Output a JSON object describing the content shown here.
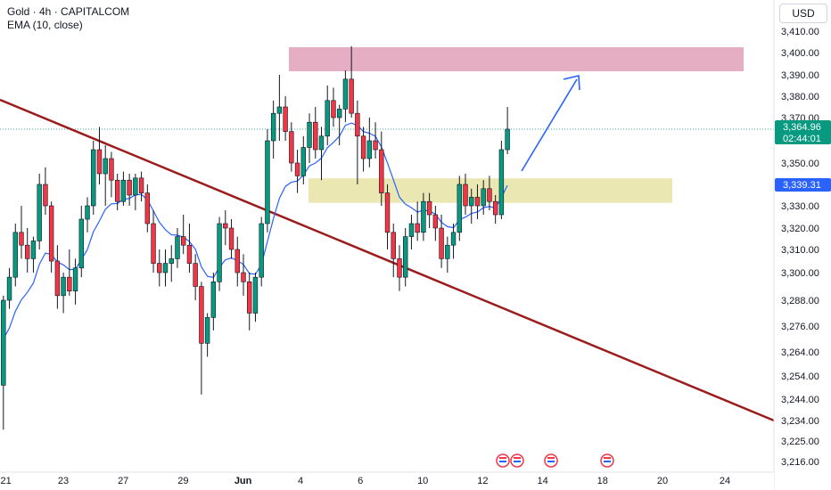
{
  "legend": {
    "symbol_line": "Gold · 4h · CAPITALCOM",
    "indicator_line": "EMA (10, close)"
  },
  "currency_button": "USD",
  "price_labels": {
    "last_price": "3,364.96",
    "countdown": "02:44:01",
    "ema_value": "3,339.31"
  },
  "colors": {
    "up": "#089981",
    "down": "#f23645",
    "ema": "#2962ff",
    "trendline": "#9b1c1c",
    "resistance_zone": "#e2a0b8",
    "support_zone": "#e8e3a6",
    "arrow": "#2962ff",
    "last_price_bg": "#089981",
    "ema_label_bg": "#2962ff"
  },
  "chart_data": {
    "type": "candlestick",
    "y_axis": {
      "position": "right",
      "ticks": [
        3410,
        3400,
        3390,
        3380,
        3370,
        3360,
        3350,
        3340,
        3330,
        3320,
        3310,
        3300,
        3288,
        3276,
        3264,
        3254,
        3244,
        3234,
        3225,
        3216
      ],
      "tick_labels": [
        "3,410.00",
        "3,400.00",
        "3,390.00",
        "3,380.00",
        "3,370.00",
        "",
        "3,350.00",
        "",
        "3,330.00",
        "3,320.00",
        "3,310.00",
        "3,300.00",
        "3,288.00",
        "3,276.00",
        "3,264.00",
        "3,254.00",
        "3,244.00",
        "3,234.00",
        "3,225.00",
        "3,216.00"
      ]
    },
    "x_axis": {
      "tick_labels": [
        "21",
        "23",
        "27",
        "29",
        "Jun",
        "4",
        "6",
        "10",
        "12",
        "14",
        "18",
        "20",
        "24"
      ],
      "tick_bar_index": [
        1,
        24,
        48,
        72,
        96,
        119,
        143,
        168,
        192,
        216,
        240,
        264,
        289
      ]
    },
    "candles": [
      [
        3250,
        3290,
        3230,
        3288
      ],
      [
        3288,
        3302,
        3284,
        3298
      ],
      [
        3298,
        3322,
        3294,
        3318
      ],
      [
        3318,
        3330,
        3306,
        3312
      ],
      [
        3312,
        3320,
        3300,
        3306
      ],
      [
        3306,
        3316,
        3300,
        3314
      ],
      [
        3314,
        3345,
        3310,
        3340
      ],
      [
        3340,
        3348,
        3326,
        3330
      ],
      [
        3330,
        3332,
        3300,
        3305
      ],
      [
        3305,
        3312,
        3284,
        3290
      ],
      [
        3290,
        3300,
        3282,
        3298
      ],
      [
        3298,
        3310,
        3290,
        3292
      ],
      [
        3292,
        3306,
        3286,
        3302
      ],
      [
        3302,
        3330,
        3298,
        3324
      ],
      [
        3324,
        3334,
        3318,
        3330
      ],
      [
        3330,
        3360,
        3326,
        3356
      ],
      [
        3356,
        3366,
        3340,
        3345
      ],
      [
        3345,
        3358,
        3330,
        3352
      ],
      [
        3352,
        3355,
        3334,
        3342
      ],
      [
        3342,
        3345,
        3328,
        3332
      ],
      [
        3332,
        3346,
        3330,
        3342
      ],
      [
        3342,
        3345,
        3330,
        3335
      ],
      [
        3335,
        3345,
        3328,
        3343
      ],
      [
        3343,
        3346,
        3332,
        3336
      ],
      [
        3336,
        3340,
        3318,
        3322
      ],
      [
        3322,
        3328,
        3300,
        3304
      ],
      [
        3304,
        3310,
        3294,
        3300
      ],
      [
        3300,
        3310,
        3294,
        3304
      ],
      [
        3304,
        3312,
        3296,
        3306
      ],
      [
        3306,
        3320,
        3302,
        3316
      ],
      [
        3316,
        3326,
        3308,
        3312
      ],
      [
        3312,
        3322,
        3300,
        3304
      ],
      [
        3304,
        3308,
        3288,
        3294
      ],
      [
        3294,
        3296,
        3246,
        3268
      ],
      [
        3268,
        3282,
        3262,
        3280
      ],
      [
        3280,
        3300,
        3274,
        3296
      ],
      [
        3296,
        3325,
        3292,
        3322
      ],
      [
        3322,
        3328,
        3312,
        3320
      ],
      [
        3320,
        3324,
        3306,
        3310
      ],
      [
        3310,
        3316,
        3294,
        3300
      ],
      [
        3300,
        3308,
        3290,
        3296
      ],
      [
        3296,
        3300,
        3274,
        3282
      ],
      [
        3282,
        3300,
        3278,
        3298
      ],
      [
        3298,
        3325,
        3294,
        3322
      ],
      [
        3322,
        3365,
        3318,
        3360
      ],
      [
        3360,
        3378,
        3352,
        3372
      ],
      [
        3372,
        3390,
        3360,
        3375
      ],
      [
        3375,
        3380,
        3360,
        3364
      ],
      [
        3364,
        3368,
        3346,
        3350
      ],
      [
        3350,
        3356,
        3336,
        3344
      ],
      [
        3344,
        3362,
        3340,
        3357
      ],
      [
        3357,
        3372,
        3350,
        3368
      ],
      [
        3368,
        3375,
        3352,
        3356
      ],
      [
        3356,
        3366,
        3342,
        3362
      ],
      [
        3362,
        3385,
        3358,
        3378
      ],
      [
        3378,
        3384,
        3366,
        3370
      ],
      [
        3370,
        3376,
        3358,
        3374
      ],
      [
        3374,
        3392,
        3368,
        3388
      ],
      [
        3388,
        3403,
        3370,
        3372
      ],
      [
        3372,
        3378,
        3340,
        3362
      ],
      [
        3362,
        3366,
        3346,
        3352
      ],
      [
        3352,
        3370,
        3348,
        3360
      ],
      [
        3360,
        3368,
        3352,
        3356
      ],
      [
        3356,
        3364,
        3330,
        3336
      ],
      [
        3336,
        3340,
        3310,
        3318
      ],
      [
        3318,
        3322,
        3298,
        3306
      ],
      [
        3306,
        3312,
        3292,
        3298
      ],
      [
        3298,
        3320,
        3294,
        3316
      ],
      [
        3316,
        3326,
        3310,
        3322
      ],
      [
        3322,
        3332,
        3314,
        3318
      ],
      [
        3318,
        3336,
        3314,
        3332
      ],
      [
        3332,
        3336,
        3320,
        3326
      ],
      [
        3326,
        3330,
        3314,
        3320
      ],
      [
        3320,
        3326,
        3302,
        3306
      ],
      [
        3306,
        3316,
        3300,
        3312
      ],
      [
        3312,
        3322,
        3306,
        3318
      ],
      [
        3318,
        3344,
        3314,
        3340
      ],
      [
        3340,
        3345,
        3326,
        3330
      ],
      [
        3330,
        3338,
        3322,
        3334
      ],
      [
        3334,
        3340,
        3324,
        3330
      ],
      [
        3330,
        3342,
        3326,
        3338
      ],
      [
        3338,
        3344,
        3328,
        3332
      ],
      [
        3332,
        3335,
        3322,
        3326
      ],
      [
        3326,
        3360,
        3324,
        3356
      ],
      [
        3356,
        3375,
        3354,
        3365
      ]
    ],
    "ema": {
      "name": "EMA (10, close)",
      "period": 10
    },
    "annotations": {
      "resistance_zone": [
        3390,
        3400
      ],
      "support_zone": [
        3331,
        3342
      ],
      "trendline": "descending"
    },
    "grid": false,
    "legend_position": "top-left"
  }
}
